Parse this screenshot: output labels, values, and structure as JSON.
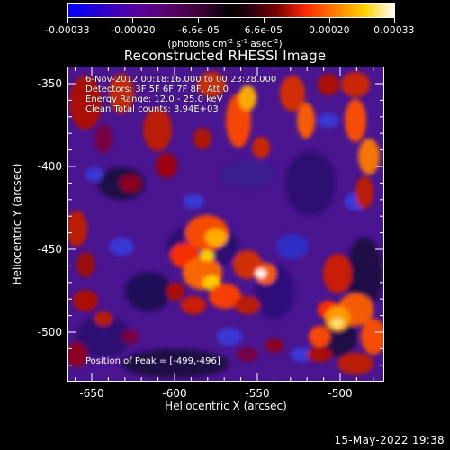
{
  "colorbar": {
    "tick_labels": [
      "-0.00033",
      "-0.00020",
      "-6.6e-05",
      "6.6e-05",
      "0.00020",
      "0.00033"
    ],
    "range": [
      -0.00033,
      0.00033
    ],
    "unit_main": "(photons cm",
    "unit_sup1": "-2",
    "unit_mid1": " s",
    "unit_sup2": "-1",
    "unit_mid2": " asec",
    "unit_sup3": "-2",
    "unit_end": ")"
  },
  "title": "Reconstructed RHESSI Image",
  "info": {
    "line1": "6-Nov-2012 00:18:16.000 to 00:23:28.000",
    "line2": "Detectors: 3F 5F 6F 7F 8F, Att 0",
    "line3": "Energy Range: 12.0 - 25.0 keV",
    "line4": "Clean     Total counts: 3.94E+03"
  },
  "peak_text": "Position of Peak = [-499,-496]",
  "x_axis": {
    "label": "Heliocentric X (arcsec)",
    "tick_labels": [
      "-650",
      "-600",
      "-550",
      "-500"
    ],
    "range": [
      -664,
      -473
    ]
  },
  "y_axis": {
    "label": "Heliocentric Y (arcsec)",
    "tick_labels": [
      "-350",
      "-400",
      "-450",
      "-500"
    ],
    "range": [
      -530,
      -340
    ]
  },
  "timestamp": "15-May-2022 19:38",
  "colors": {
    "background": "#000000",
    "foreground": "#ffffff"
  }
}
